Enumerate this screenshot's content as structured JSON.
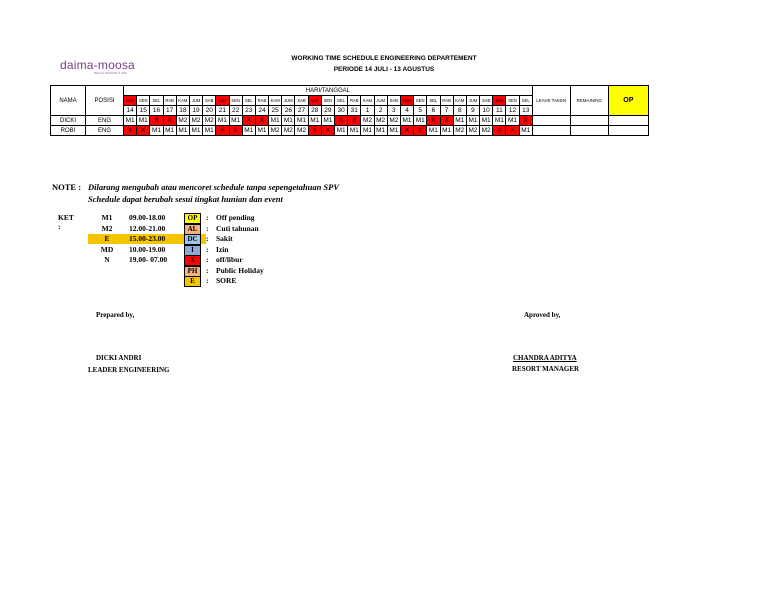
{
  "logo": {
    "word": "daima-moosa",
    "tagline": "BEACH RESORT & SPA"
  },
  "title": {
    "line1": "WORKING TIME SCHEDULE ENGINEERING DEPARTEMENT",
    "line2": "PERIODE 14 JULI - 13 AGUSTUS"
  },
  "table": {
    "col_nama": "NAMA",
    "col_posisi": "POSISI",
    "hari_tanggal": "HARI/TANGGAL",
    "leave_taken": "LEAVE TAKEN",
    "remaining": "REMAINING",
    "op": "OP",
    "days": [
      "MIN",
      "SEN",
      "SEL",
      "RAB",
      "KAM",
      "JUM",
      "SAB",
      "MIN",
      "SEN",
      "SEL",
      "RAB",
      "KAM",
      "JUM",
      "SAB",
      "MIN",
      "SEN",
      "SEL",
      "RAB",
      "KAM",
      "JUM",
      "SAB",
      "MIN",
      "SEN",
      "SEL",
      "RAB",
      "KAM",
      "JUM",
      "SAB",
      "MIN",
      "SEN",
      "SEL"
    ],
    "dates": [
      "14",
      "15",
      "16",
      "17",
      "18",
      "19",
      "20",
      "21",
      "22",
      "23",
      "24",
      "25",
      "26",
      "27",
      "28",
      "29",
      "30",
      "31",
      "1",
      "2",
      "3",
      "4",
      "5",
      "6",
      "7",
      "8",
      "9",
      "10",
      "11",
      "12",
      "13"
    ],
    "rows": [
      {
        "nama": "DICKI",
        "posisi": "ENG",
        "cells": [
          "M1",
          "M1",
          "X",
          "X",
          "M2",
          "M2",
          "M2",
          "M1",
          "M1",
          "X",
          "X",
          "M1",
          "M1",
          "M1",
          "M1",
          "M1",
          "X",
          "X",
          "M2",
          "M2",
          "M2",
          "M1",
          "M1",
          "X",
          "X",
          "M1",
          "M1",
          "M1",
          "M1",
          "M1",
          "X"
        ]
      },
      {
        "nama": "ROBI",
        "posisi": "ENG",
        "cells": [
          "X",
          "X",
          "M1",
          "M1",
          "M1",
          "M1",
          "M1",
          "X",
          "X",
          "M1",
          "M1",
          "M2",
          "M2",
          "M2",
          "X",
          "X",
          "M1",
          "M1",
          "M1",
          "M1",
          "M1",
          "X",
          "X",
          "M1",
          "M1",
          "M2",
          "M2",
          "M2",
          "X",
          "X",
          "M1"
        ]
      }
    ]
  },
  "note": {
    "label": "NOTE :",
    "line1": "Dilarang mengubah atau mencoret schedule tanpa sepengetahuan SPV",
    "line2": "Schedule dapat berubah sesui tingkat hunian dan event"
  },
  "ket": {
    "label": "KET :",
    "shifts": [
      {
        "code": "M1",
        "time": "09.00-18.00"
      },
      {
        "code": "M2",
        "time": "12.00-21.00"
      },
      {
        "code": "E",
        "time": "15.00-23.00"
      },
      {
        "code": "MD",
        "time": "10.00-19.00"
      },
      {
        "code": "N",
        "time": "19.00- 07.00"
      }
    ],
    "legend": [
      {
        "code": "OP",
        "color": "#ffff00",
        "desc": "Off pending"
      },
      {
        "code": "AL",
        "color": "#f4b183",
        "desc": "Cuti tahunan"
      },
      {
        "code": "DC",
        "color": "#9dc3e6",
        "desc": "Sakit"
      },
      {
        "code": "I",
        "color": "#8eaadb",
        "desc": "Izin"
      },
      {
        "code": "X",
        "color": "#ff0000",
        "desc": "off/libur"
      },
      {
        "code": "PH",
        "color": "#f4b183",
        "desc": "Public Holiday"
      },
      {
        "code": "E",
        "color": "#f5c500",
        "desc": "SORE"
      }
    ],
    "colon": ":"
  },
  "signatures": {
    "prepared_label": "Prepared by,",
    "prepared_name": "DICKI ANDRI",
    "prepared_role": "LEADER ENGINEERING",
    "approved_label": "Aproved by,",
    "approved_name": "CHANDRA ADITYA",
    "approved_role": "RESORT MANAGER"
  }
}
